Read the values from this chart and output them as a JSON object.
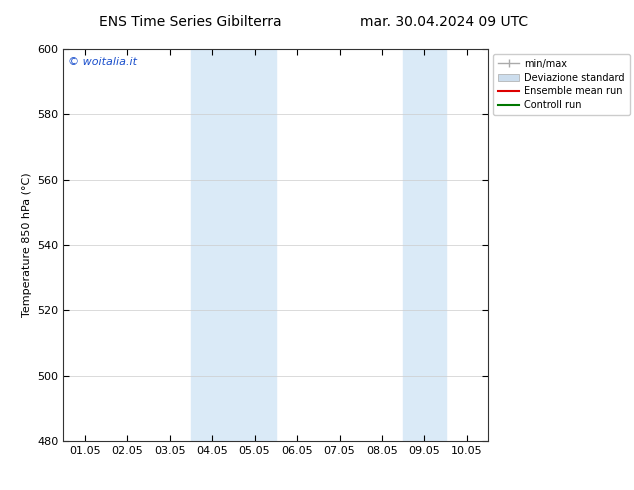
{
  "title_left": "ENS Time Series Gibilterra",
  "title_right": "mar. 30.04.2024 09 UTC",
  "ylabel": "Temperature 850 hPa (°C)",
  "xlim": [
    0,
    9
  ],
  "xtick_positions": [
    0,
    1,
    2,
    3,
    4,
    5,
    6,
    7,
    8,
    9
  ],
  "xtick_labels": [
    "01.05",
    "02.05",
    "03.05",
    "04.05",
    "05.05",
    "06.05",
    "07.05",
    "08.05",
    "09.05",
    "10.05"
  ],
  "ylim": [
    480,
    600
  ],
  "ytick_values": [
    480,
    500,
    520,
    540,
    560,
    580,
    600
  ],
  "shaded_regions": [
    {
      "x_start": 3.0,
      "x_end": 4.0,
      "color": "#daeaf7"
    },
    {
      "x_start": 4.0,
      "x_end": 5.0,
      "color": "#daeaf7"
    },
    {
      "x_start": 8.0,
      "x_end": 9.0,
      "color": "#daeaf7"
    }
  ],
  "legend_items": [
    {
      "label": "min/max",
      "color": "#aaaaaa",
      "lw": 1
    },
    {
      "label": "Deviazione standard",
      "color": "#ccdded",
      "lw": 6
    },
    {
      "label": "Ensemble mean run",
      "color": "#dd0000",
      "lw": 1.5
    },
    {
      "label": "Controll run",
      "color": "#007700",
      "lw": 1.5
    }
  ],
  "watermark_text": "© woitalia.it",
  "watermark_color": "#1a4fcc",
  "background_color": "#ffffff",
  "grid_color": "#cccccc",
  "spine_color": "#333333",
  "title_fontsize": 10,
  "axis_fontsize": 8,
  "tick_fontsize": 8,
  "legend_fontsize": 7
}
